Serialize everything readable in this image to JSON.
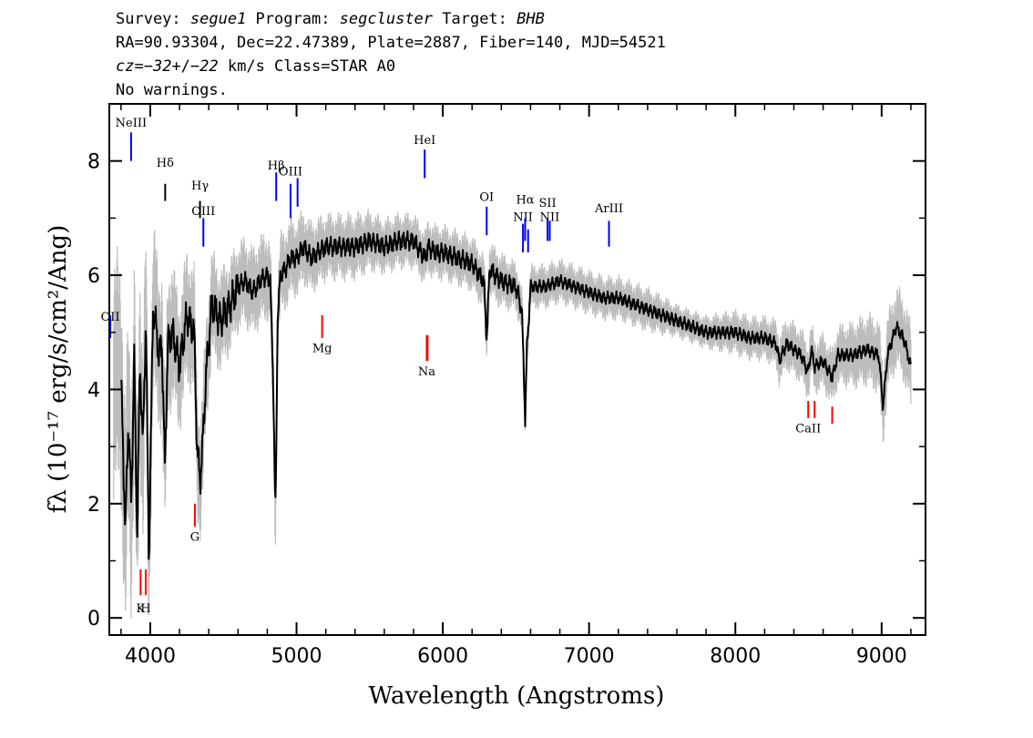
{
  "header": {
    "line1": {
      "survey_label": "Survey: ",
      "survey": "segue1",
      "program_label": " Program: ",
      "program": "segcluster",
      "target_label": " Target: ",
      "target": "BHB"
    },
    "line2": "RA=90.93304, Dec=22.47389, Plate=2887, Fiber=140, MJD=54521",
    "line3": {
      "cz_prefix": "cz=",
      "cz_value": "−32",
      "cz_sep": "+/−",
      "cz_err": "22",
      "cz_rest": " km/s Class=STAR A0"
    },
    "line4": "No warnings."
  },
  "chart_data": {
    "type": "line",
    "xlabel": "Wavelength (Angstroms)",
    "ylabel": "fλ (10⁻¹⁷ erg/s/cm²/Ang)",
    "xlim": [
      3720,
      9300
    ],
    "ylim": [
      -0.3,
      9.0
    ],
    "xticks": [
      4000,
      5000,
      6000,
      7000,
      8000,
      9000
    ],
    "yticks": [
      0,
      2,
      4,
      6,
      8
    ],
    "series": [
      {
        "role": "flux",
        "color": "#000000",
        "x": [
          3800,
          3830,
          3850,
          3870,
          3890,
          3910,
          3930,
          3950,
          3970,
          3990,
          4020,
          4060,
          4080,
          4100,
          4120,
          4150,
          4200,
          4250,
          4300,
          4320,
          4340,
          4360,
          4380,
          4420,
          4480,
          4550,
          4600,
          4650,
          4700,
          4750,
          4800,
          4820,
          4840,
          4855,
          4861,
          4870,
          4890,
          4920,
          4960,
          5000,
          5050,
          5100,
          5150,
          5200,
          5300,
          5400,
          5500,
          5600,
          5700,
          5800,
          5880,
          5900,
          5950,
          6000,
          6100,
          6200,
          6280,
          6300,
          6320,
          6400,
          6500,
          6540,
          6555,
          6563,
          6575,
          6600,
          6700,
          6800,
          6900,
          7000,
          7100,
          7200,
          7300,
          7400,
          7500,
          7600,
          7700,
          7800,
          7900,
          8000,
          8100,
          8200,
          8280,
          8300,
          8350,
          8400,
          8450,
          8498,
          8520,
          8542,
          8600,
          8662,
          8700,
          8800,
          8900,
          8980,
          9010,
          9040,
          9100,
          9150,
          9200
        ],
        "y": [
          4.2,
          1.5,
          3.5,
          2.0,
          4.5,
          1.5,
          4.5,
          3.0,
          5.3,
          1.0,
          5.5,
          4.6,
          4.8,
          2.6,
          4.8,
          5.0,
          4.4,
          5.3,
          5.0,
          3.0,
          2.4,
          3.1,
          4.2,
          5.5,
          5.2,
          5.5,
          5.8,
          5.9,
          5.7,
          5.9,
          6.0,
          5.9,
          4.2,
          1.8,
          2.8,
          5.2,
          6.0,
          6.1,
          6.3,
          6.3,
          6.5,
          6.3,
          6.4,
          6.5,
          6.5,
          6.5,
          6.6,
          6.5,
          6.6,
          6.6,
          6.3,
          6.5,
          6.4,
          6.4,
          6.3,
          6.2,
          5.9,
          4.9,
          6.1,
          5.9,
          5.8,
          5.4,
          4.2,
          3.5,
          4.7,
          5.8,
          5.8,
          5.9,
          5.8,
          5.7,
          5.6,
          5.6,
          5.5,
          5.4,
          5.3,
          5.2,
          5.1,
          5.0,
          5.0,
          5.0,
          4.9,
          4.9,
          4.8,
          4.5,
          4.8,
          4.7,
          4.6,
          4.3,
          4.7,
          4.4,
          4.5,
          4.2,
          4.6,
          4.6,
          4.7,
          4.6,
          3.7,
          4.6,
          5.1,
          4.9,
          4.4
        ]
      },
      {
        "role": "error",
        "color": "#bdbdbd",
        "x": [
          3800,
          3900,
          4000,
          4100,
          4200,
          4300,
          4400,
          4500,
          4600,
          4800,
          5000,
          5200,
          5400,
          5600,
          5800,
          6000,
          6200,
          6400,
          6600,
          6800,
          7000,
          7200,
          7400,
          7600,
          7800,
          8000,
          8200,
          8400,
          8600,
          8800,
          9000,
          9200
        ],
        "y": [
          2.2,
          2.0,
          1.6,
          1.4,
          1.2,
          1.2,
          1.0,
          0.9,
          0.8,
          0.8,
          0.7,
          0.6,
          0.6,
          0.5,
          0.5,
          0.5,
          0.5,
          0.5,
          0.4,
          0.4,
          0.4,
          0.4,
          0.4,
          0.3,
          0.3,
          0.4,
          0.4,
          0.5,
          0.5,
          0.6,
          0.7,
          0.8
        ]
      }
    ],
    "emission_lines": [
      {
        "label": "NeIII",
        "wave": 3869,
        "y1": 8.0,
        "y2": 8.5,
        "color": "#0000ff",
        "label_y": 8.6
      },
      {
        "label": "OII",
        "wave": 3727,
        "y1": 4.9,
        "y2": 5.3,
        "color": "#0000ff",
        "label_y": 5.2
      },
      {
        "label": "Hδ",
        "wave": 4102,
        "y1": 7.3,
        "y2": 7.6,
        "color": "#000000",
        "label_y": 7.9
      },
      {
        "label": "Hγ",
        "wave": 4340,
        "y1": 7.0,
        "y2": 7.3,
        "color": "#000000",
        "label_y": 7.5
      },
      {
        "label": "OIII",
        "wave": 4363,
        "y1": 6.5,
        "y2": 7.0,
        "color": "#0000ff",
        "label_y": 7.05
      },
      {
        "label": "Hβ",
        "wave": 4861,
        "y1": 7.3,
        "y2": 7.8,
        "color": "#0000ff",
        "label_y": 7.85
      },
      {
        "label": "OIII",
        "wave": 4959,
        "y1": 7.0,
        "y2": 7.6,
        "color": "#0000ff",
        "label_y": 7.75
      },
      {
        "label": "OIII",
        "wave": 5007,
        "y1": 7.2,
        "y2": 7.7,
        "color": "#0000ff",
        "label_y": null
      },
      {
        "label": "HeI",
        "wave": 5876,
        "y1": 7.7,
        "y2": 8.2,
        "color": "#0000ff",
        "label_y": 8.3
      },
      {
        "label": "OI",
        "wave": 6300,
        "y1": 6.7,
        "y2": 7.2,
        "color": "#0000ff",
        "label_y": 7.3
      },
      {
        "label": "NII",
        "wave": 6548,
        "y1": 6.4,
        "y2": 6.9,
        "color": "#0000ff",
        "label_y": 6.95
      },
      {
        "label": "Hα",
        "wave": 6563,
        "y1": 6.6,
        "y2": 7.0,
        "color": "#0000ff",
        "label_y": 7.25
      },
      {
        "label": "NII",
        "wave": 6583,
        "y1": 6.4,
        "y2": 6.8,
        "color": "#0000ff",
        "label_y": null
      },
      {
        "label": "SII",
        "wave": 6716,
        "y1": 6.6,
        "y2": 7.0,
        "color": "#0000ff",
        "label_y": 7.2
      },
      {
        "label": "NII",
        "wave": 6731,
        "y1": 6.6,
        "y2": 6.95,
        "color": "#0000ff",
        "label_y": 6.95
      },
      {
        "label": "ArIII",
        "wave": 7136,
        "y1": 6.5,
        "y2": 6.95,
        "color": "#0000ff",
        "label_y": 7.1
      }
    ],
    "absorption_lines": [
      {
        "label": "K",
        "wave": 3934,
        "y1": 0.4,
        "y2": 0.85,
        "color": "#ff0000",
        "label_y": 0.1
      },
      {
        "label": "H",
        "wave": 3969,
        "y1": 0.4,
        "y2": 0.85,
        "color": "#ff0000",
        "label_y": 0.1
      },
      {
        "label": "G",
        "wave": 4305,
        "y1": 1.6,
        "y2": 2.0,
        "color": "#ff0000",
        "label_y": 1.35
      },
      {
        "label": "Mg",
        "wave": 5175,
        "y1": 4.9,
        "y2": 5.3,
        "color": "#ff0000",
        "label_y": 4.65
      },
      {
        "label": "Na",
        "wave": 5890,
        "y1": 4.5,
        "y2": 4.95,
        "color": "#ff0000",
        "label_y": 4.25
      },
      {
        "label": "D",
        "wave": 5896,
        "y1": 4.5,
        "y2": 4.95,
        "color": "#ff0000",
        "label_y": null
      },
      {
        "label": "CaII",
        "wave": 8498,
        "y1": 3.5,
        "y2": 3.8,
        "color": "#ff0000",
        "label_y": 3.25
      },
      {
        "label": "",
        "wave": 8542,
        "y1": 3.5,
        "y2": 3.8,
        "color": "#ff0000",
        "label_y": null
      },
      {
        "label": "",
        "wave": 8662,
        "y1": 3.4,
        "y2": 3.7,
        "color": "#ff0000",
        "label_y": null
      }
    ]
  }
}
